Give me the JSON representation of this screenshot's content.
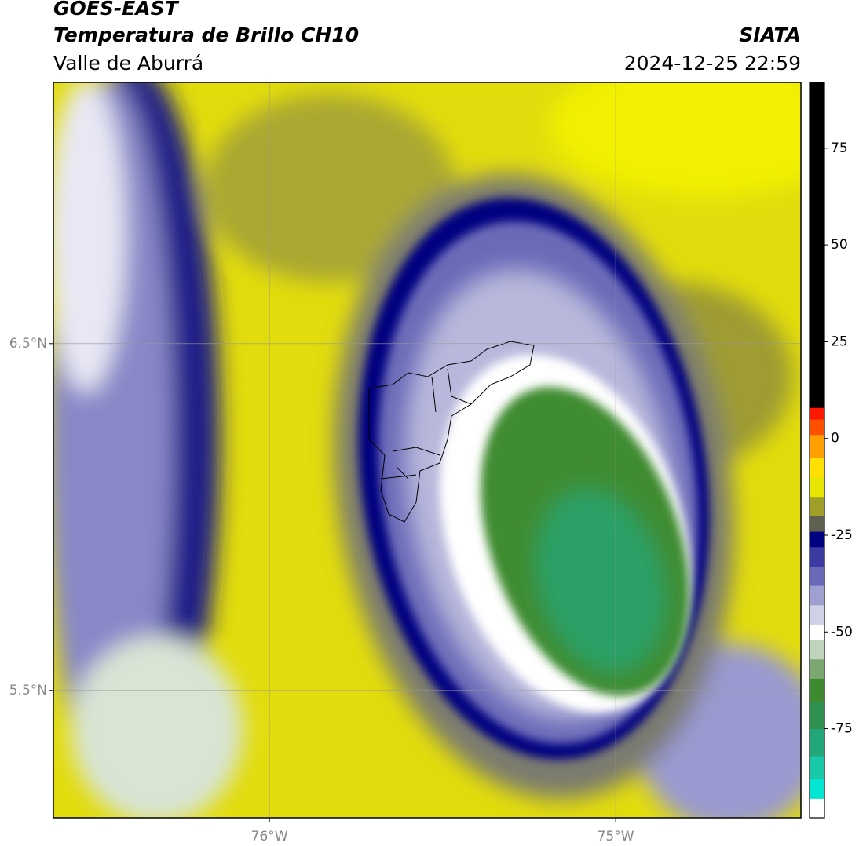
{
  "header": {
    "title": "GOES-EAST",
    "subtitle": "Temperatura de Brillo CH10",
    "region": "Valle de Aburrá",
    "source": "SIATA",
    "timestamp": "2024-12-25 22:59"
  },
  "map": {
    "xlim": [
      -76.624,
      -74.465
    ],
    "ylim": [
      5.133,
      7.253
    ],
    "xticks": [
      {
        "value": -76,
        "label": "76°W"
      },
      {
        "value": -75,
        "label": "75°W"
      }
    ],
    "yticks": [
      {
        "value": 6.5,
        "label": "6.5°N"
      },
      {
        "value": 5.5,
        "label": "5.5°N"
      }
    ],
    "grid": true
  },
  "colorbar": {
    "lim": [
      -98,
      92
    ],
    "ticks": [
      75,
      50,
      25,
      0,
      -25,
      -50,
      -75
    ],
    "segments": [
      {
        "from": -98,
        "color": "#ffffff"
      },
      {
        "from": -93,
        "color": "#00e6d2"
      },
      {
        "from": -88,
        "color": "#18c8a8"
      },
      {
        "from": -82,
        "color": "#22a878"
      },
      {
        "from": -75,
        "color": "#2f9050"
      },
      {
        "from": -68,
        "color": "#3e8a30"
      },
      {
        "from": -62,
        "color": "#7aa870"
      },
      {
        "from": -57,
        "color": "#c0d4bc"
      },
      {
        "from": -52,
        "color": "#ffffff"
      },
      {
        "from": -48,
        "color": "#d0d0e8"
      },
      {
        "from": -43,
        "color": "#a0a0d0"
      },
      {
        "from": -38,
        "color": "#6a6ab8"
      },
      {
        "from": -33,
        "color": "#3a3aa0"
      },
      {
        "from": -28,
        "color": "#000080"
      },
      {
        "from": -24,
        "color": "#606050"
      },
      {
        "from": -20,
        "color": "#a0a028"
      },
      {
        "from": -15,
        "color": "#e6e600"
      },
      {
        "from": -10,
        "color": "#ffe000"
      },
      {
        "from": -5,
        "color": "#ffa000"
      },
      {
        "from": 1,
        "color": "#ff5000"
      },
      {
        "from": 5,
        "color": "#ff1800"
      },
      {
        "from": 8,
        "color": "#000000"
      }
    ]
  }
}
